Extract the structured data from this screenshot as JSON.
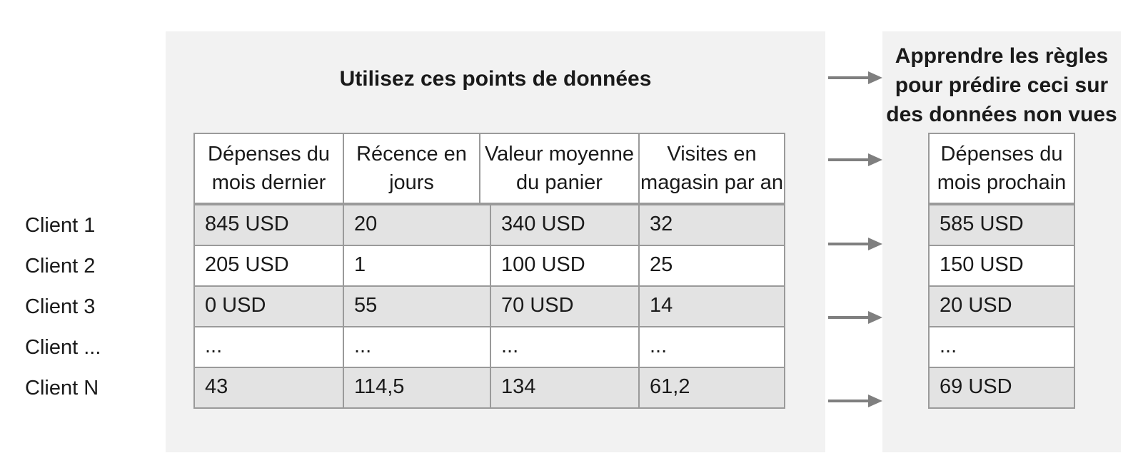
{
  "left_heading": "Utilisez ces points de données",
  "right_heading": [
    "Apprendre les règles",
    "pour prédire ceci sur",
    "des données non vues"
  ],
  "headers": [
    [
      "Dépenses du",
      "mois dernier"
    ],
    [
      "Récence en",
      "jours"
    ],
    [
      "Valeur moyenne",
      "du panier"
    ],
    [
      "Visites en",
      "magasin par an"
    ]
  ],
  "target_header": [
    "Dépenses du",
    "mois prochain"
  ],
  "row_labels": [
    "Client 1",
    "Client 2",
    "Client 3",
    "Client ...",
    "Client N"
  ],
  "rows": [
    [
      "845 USD",
      "20",
      "340 USD",
      "32"
    ],
    [
      "205 USD",
      "1",
      "100 USD",
      "25"
    ],
    [
      "0 USD",
      "55",
      "70 USD",
      "14"
    ],
    [
      "...",
      "...",
      "...",
      "..."
    ],
    [
      "43",
      "114,5",
      "134",
      "61,2"
    ]
  ],
  "targets": [
    "585 USD",
    "150 USD",
    "20 USD",
    "...",
    "69 USD"
  ],
  "colors": {
    "panel": "#f2f2f2",
    "shaded_row": "#e3e3e3",
    "border": "#9a9a9a",
    "arrow": "#7f7f7f"
  }
}
